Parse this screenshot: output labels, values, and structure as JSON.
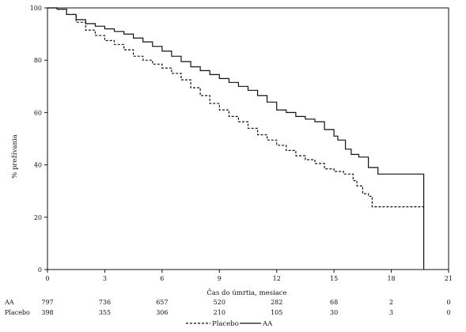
{
  "chart_data": {
    "type": "line",
    "xlabel": "Čas do úmrtia, mesiace",
    "ylabel": "% prežívania",
    "xlim": [
      0,
      21
    ],
    "ylim": [
      0,
      100
    ],
    "x_ticks": [
      0,
      3,
      6,
      9,
      12,
      15,
      18,
      21
    ],
    "y_ticks": [
      0,
      20,
      40,
      60,
      80,
      100
    ],
    "grid": false,
    "legend_position": "bottom-center",
    "series": [
      {
        "name": "AA",
        "line_style": "solid",
        "color": "#111111",
        "x": [
          0,
          0.5,
          1,
          1.5,
          2,
          2.5,
          3,
          3.5,
          4,
          4.5,
          5,
          5.5,
          6,
          6.5,
          7,
          7.5,
          8,
          8.5,
          9,
          9.5,
          10,
          10.5,
          11,
          11.5,
          12,
          12.5,
          13,
          13.5,
          14,
          14.5,
          15,
          15.2,
          15.6,
          15.9,
          16.3,
          16.8,
          17.3,
          18,
          19,
          19.7,
          19.7
        ],
        "y": [
          100,
          99.5,
          97.5,
          95.5,
          94,
          93,
          92,
          91,
          90,
          88.5,
          87,
          85.3,
          83.5,
          81.5,
          79.5,
          77.5,
          76,
          74.5,
          73,
          71.5,
          70,
          68.5,
          66.5,
          64,
          61,
          60,
          58.5,
          57.5,
          56.5,
          53.5,
          51,
          49.5,
          46,
          44,
          43,
          39,
          36.5,
          36.5,
          36.5,
          36.5,
          0
        ]
      },
      {
        "name": "Placebo",
        "line_style": "dashed",
        "color": "#111111",
        "x": [
          0,
          0.5,
          1,
          1.5,
          2,
          2.5,
          3,
          3.5,
          4,
          4.5,
          5,
          5.5,
          6,
          6.5,
          7,
          7.5,
          8,
          8.5,
          9,
          9.5,
          10,
          10.5,
          11,
          11.5,
          12,
          12.5,
          13,
          13.5,
          14,
          14.5,
          15,
          15.5,
          16,
          16.2,
          16.5,
          16.8,
          17,
          18,
          19,
          19.7
        ],
        "y": [
          100,
          99.5,
          97.5,
          94.5,
          91.5,
          89.5,
          87.5,
          86,
          84,
          81.5,
          80,
          78.5,
          77,
          75,
          72.5,
          69.5,
          66.5,
          63.5,
          61,
          58.5,
          56.5,
          54,
          51.5,
          49.5,
          47.5,
          45.5,
          43.5,
          42,
          40.5,
          38.5,
          37.5,
          36.5,
          34,
          32,
          29,
          28,
          24,
          24,
          24,
          24
        ]
      }
    ],
    "risk_table": {
      "times": [
        0,
        3,
        6,
        9,
        12,
        15,
        18,
        21
      ],
      "rows": [
        {
          "label": "AA",
          "values": [
            "797",
            "736",
            "657",
            "520",
            "282",
            "68",
            "2",
            "0"
          ]
        },
        {
          "label": "Placebo",
          "values": [
            "398",
            "355",
            "306",
            "210",
            "105",
            "30",
            "3",
            "0"
          ]
        }
      ]
    },
    "legend": [
      {
        "label": "Placebo",
        "line_style": "dashed"
      },
      {
        "label": "AA",
        "line_style": "solid"
      }
    ]
  }
}
